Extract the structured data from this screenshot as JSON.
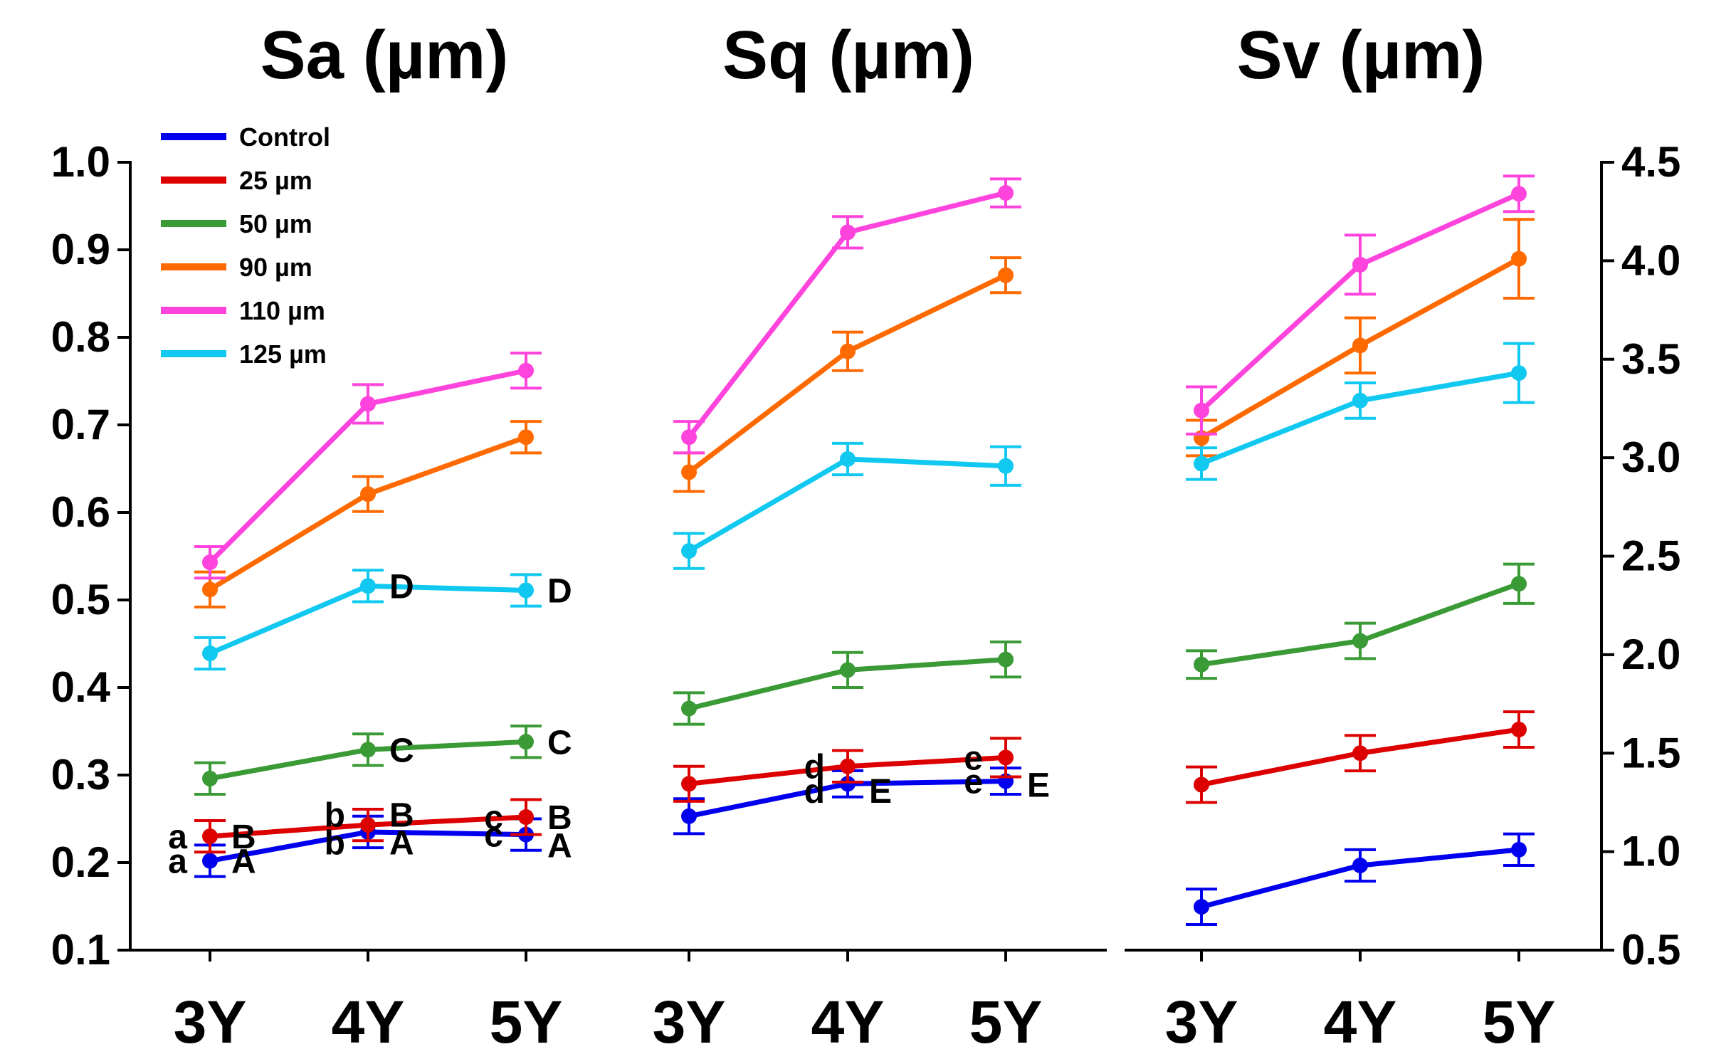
{
  "chart_data": {
    "type": "line",
    "categories": [
      "3Y",
      "4Y",
      "5Y"
    ],
    "legend": [
      {
        "name": "Control",
        "color": "#0000ee"
      },
      {
        "name": "25 µm",
        "color": "#dd0000"
      },
      {
        "name": "50 µm",
        "color": "#3a9a35"
      },
      {
        "name": "90 µm",
        "color": "#ff6a00"
      },
      {
        "name": "110 µm",
        "color": "#ff44dd"
      },
      {
        "name": "125 µm",
        "color": "#10c8f0"
      }
    ],
    "left_axis": {
      "ylim": [
        0.1,
        1.0
      ],
      "ticks": [
        "0.1",
        "0.2",
        "0.3",
        "0.4",
        "0.5",
        "0.6",
        "0.7",
        "0.8",
        "0.9",
        "1.0"
      ]
    },
    "right_axis": {
      "ylim": [
        0.5,
        4.5
      ],
      "ticks": [
        "0.5",
        "1.0",
        "1.5",
        "2.0",
        "2.5",
        "3.0",
        "3.5",
        "4.0",
        "4.5"
      ]
    },
    "panels": [
      {
        "title": "Sa (µm)",
        "axis": "left",
        "series": [
          {
            "name": "Control",
            "values": [
              0.202,
              0.235,
              0.232
            ],
            "errors": [
              0.018,
              0.018,
              0.018
            ]
          },
          {
            "name": "25 µm",
            "values": [
              0.23,
              0.243,
              0.252
            ],
            "errors": [
              0.018,
              0.018,
              0.02
            ]
          },
          {
            "name": "50 µm",
            "values": [
              0.296,
              0.329,
              0.338
            ],
            "errors": [
              0.018,
              0.018,
              0.018
            ]
          },
          {
            "name": "90 µm",
            "values": [
              0.512,
              0.621,
              0.686
            ],
            "errors": [
              0.02,
              0.02,
              0.018
            ]
          },
          {
            "name": "110 µm",
            "values": [
              0.543,
              0.724,
              0.762
            ],
            "errors": [
              0.018,
              0.022,
              0.02
            ]
          },
          {
            "name": "125 µm",
            "values": [
              0.439,
              0.516,
              0.511
            ],
            "errors": [
              0.018,
              0.018,
              0.018
            ]
          }
        ],
        "annotations": [
          {
            "text": "a",
            "series": "25 µm",
            "cat": 0,
            "side": "left"
          },
          {
            "text": "B",
            "series": "25 µm",
            "cat": 0,
            "side": "right"
          },
          {
            "text": "a",
            "series": "Control",
            "cat": 0,
            "side": "left"
          },
          {
            "text": "A",
            "series": "Control",
            "cat": 0,
            "side": "right"
          },
          {
            "text": "b",
            "series": "25 µm",
            "cat": 1,
            "side": "left",
            "dy": 0.012
          },
          {
            "text": "B",
            "series": "25 µm",
            "cat": 1,
            "side": "right",
            "dy": 0.012
          },
          {
            "text": "b",
            "series": "Control",
            "cat": 1,
            "side": "left",
            "dy": -0.012
          },
          {
            "text": "A",
            "series": "Control",
            "cat": 1,
            "side": "right",
            "dy": -0.012
          },
          {
            "text": "c",
            "series": "25 µm",
            "cat": 2,
            "side": "left"
          },
          {
            "text": "B",
            "series": "25 µm",
            "cat": 2,
            "side": "right"
          },
          {
            "text": "c",
            "series": "Control",
            "cat": 2,
            "side": "left"
          },
          {
            "text": "A",
            "series": "Control",
            "cat": 2,
            "side": "right",
            "dy": -0.012
          },
          {
            "text": "C",
            "series": "50 µm",
            "cat": 1,
            "side": "right"
          },
          {
            "text": "C",
            "series": "50 µm",
            "cat": 2,
            "side": "right"
          },
          {
            "text": "D",
            "series": "125 µm",
            "cat": 1,
            "side": "right"
          },
          {
            "text": "D",
            "series": "125 µm",
            "cat": 2,
            "side": "right"
          }
        ]
      },
      {
        "title": "Sq (µm)",
        "axis": "left",
        "series": [
          {
            "name": "Control",
            "values": [
              0.253,
              0.29,
              0.293
            ],
            "errors": [
              0.02,
              0.015,
              0.015
            ]
          },
          {
            "name": "25 µm",
            "values": [
              0.29,
              0.31,
              0.32
            ],
            "errors": [
              0.02,
              0.018,
              0.022
            ]
          },
          {
            "name": "50 µm",
            "values": [
              0.376,
              0.42,
              0.432
            ],
            "errors": [
              0.018,
              0.02,
              0.02
            ]
          },
          {
            "name": "90 µm",
            "values": [
              0.646,
              0.784,
              0.871
            ],
            "errors": [
              0.022,
              0.022,
              0.02
            ]
          },
          {
            "name": "110 µm",
            "values": [
              0.686,
              0.92,
              0.965
            ],
            "errors": [
              0.018,
              0.018,
              0.016
            ]
          },
          {
            "name": "125 µm",
            "values": [
              0.556,
              0.661,
              0.653
            ],
            "errors": [
              0.02,
              0.018,
              0.022
            ]
          }
        ],
        "annotations": [
          {
            "text": "d",
            "series": "25 µm",
            "cat": 1,
            "side": "left"
          },
          {
            "text": "d",
            "series": "Control",
            "cat": 1,
            "side": "left",
            "dy": -0.008
          },
          {
            "text": "E",
            "series": "Control",
            "cat": 1,
            "side": "right",
            "dy": -0.008
          },
          {
            "text": "e",
            "series": "25 µm",
            "cat": 2,
            "side": "left"
          },
          {
            "text": "e",
            "series": "Control",
            "cat": 2,
            "side": "left"
          },
          {
            "text": "E",
            "series": "Control",
            "cat": 2,
            "side": "right",
            "dy": -0.004
          }
        ]
      },
      {
        "title": "Sv (µm)",
        "axis": "right",
        "series": [
          {
            "name": "Control",
            "values": [
              0.72,
              0.93,
              1.01
            ],
            "errors": [
              0.09,
              0.08,
              0.08
            ]
          },
          {
            "name": "25 µm",
            "values": [
              1.34,
              1.5,
              1.62
            ],
            "errors": [
              0.09,
              0.09,
              0.09
            ]
          },
          {
            "name": "50 µm",
            "values": [
              1.95,
              2.07,
              2.36
            ],
            "errors": [
              0.07,
              0.09,
              0.1
            ]
          },
          {
            "name": "90 µm",
            "values": [
              3.1,
              3.57,
              4.01
            ],
            "errors": [
              0.09,
              0.14,
              0.2
            ]
          },
          {
            "name": "110 µm",
            "values": [
              3.24,
              3.98,
              4.34
            ],
            "errors": [
              0.12,
              0.15,
              0.09
            ]
          },
          {
            "name": "125 µm",
            "values": [
              2.97,
              3.29,
              3.43
            ],
            "errors": [
              0.08,
              0.09,
              0.15
            ]
          }
        ],
        "annotations": []
      }
    ]
  }
}
